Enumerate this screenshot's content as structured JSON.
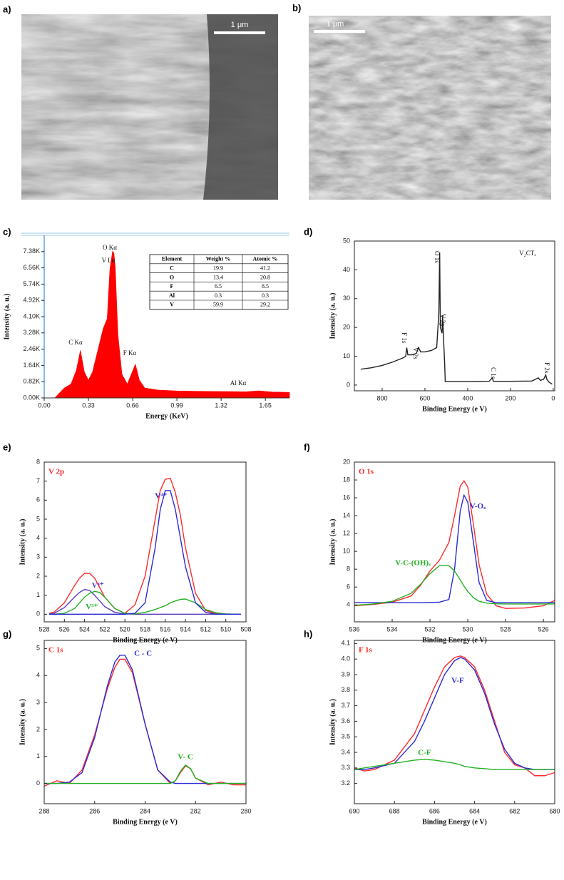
{
  "images": [
    {
      "label": "a)",
      "scale_bar": "1 μm"
    },
    {
      "label": "b)",
      "scale_bar": "1 μm"
    }
  ],
  "chart_data": [
    {
      "type": "area",
      "label": "c)",
      "xlabel": "Energy (KeV)",
      "ylabel": "Intensity (a. u.)",
      "xlim": [
        0,
        1.83
      ],
      "ylim": [
        0,
        8200
      ],
      "xticks": [
        {
          "value": 0,
          "label": "0.00"
        },
        0.33,
        0.66,
        0.99,
        1.32,
        1.65
      ],
      "yticks": [
        {
          "value": 0,
          "label": "0.00K"
        },
        {
          "value": 820,
          "label": "0.82K"
        },
        {
          "value": 1640,
          "label": "1.64K"
        },
        {
          "value": 2460,
          "label": "2.46K"
        },
        {
          "value": 3280,
          "label": "3.28K"
        },
        {
          "value": 4100,
          "label": "4.10K"
        },
        {
          "value": 4920,
          "label": "4.92K"
        },
        {
          "value": 5740,
          "label": "5.74K"
        },
        {
          "value": 6560,
          "label": "6.56K"
        },
        {
          "value": 7380,
          "label": "7.38K"
        }
      ],
      "x": [
        0,
        0.08,
        0.1,
        0.15,
        0.2,
        0.24,
        0.27,
        0.3,
        0.33,
        0.36,
        0.4,
        0.44,
        0.47,
        0.49,
        0.51,
        0.52,
        0.53,
        0.55,
        0.58,
        0.62,
        0.65,
        0.68,
        0.71,
        0.75,
        0.85,
        1.0,
        1.2,
        1.4,
        1.5,
        1.6,
        1.7,
        1.83
      ],
      "series": [
        {
          "color": "#ff0000",
          "values": [
            0,
            0,
            150,
            500,
            700,
            1400,
            2400,
            1300,
            900,
            1300,
            2400,
            3500,
            4000,
            6500,
            7400,
            7300,
            6600,
            3200,
            1200,
            700,
            1200,
            1700,
            900,
            500,
            400,
            350,
            330,
            320,
            310,
            360,
            300,
            280
          ]
        }
      ],
      "annotations": [
        "C Kα",
        "O Kα",
        "V Lα",
        "F Kα",
        "Al Kα"
      ],
      "table": {
        "header": [
          "Element",
          "Weight %",
          "Atomic %"
        ],
        "rows": [
          [
            "C",
            19.9,
            41.2
          ],
          [
            "O",
            13.4,
            20.8
          ],
          [
            "F",
            6.5,
            8.5
          ],
          [
            "Al",
            0.3,
            0.3
          ],
          [
            "V",
            59.9,
            29.2
          ]
        ]
      }
    },
    {
      "type": "line",
      "label": "d)",
      "xlabel": "Binding Energy (e V)",
      "ylabel": "Intensity (a. u.)",
      "xlim": [
        930,
        -7
      ],
      "ylim": [
        -2,
        50
      ],
      "xticks": [
        800,
        600,
        400,
        200,
        0
      ],
      "yticks": [
        0,
        10,
        20,
        30,
        40,
        50
      ],
      "x": [
        900,
        850,
        800,
        750,
        700,
        690,
        685,
        680,
        660,
        640,
        630,
        620,
        600,
        570,
        545,
        535,
        531,
        528,
        520,
        517,
        513,
        508,
        505,
        400,
        300,
        285,
        280,
        200,
        100,
        70,
        60,
        45,
        35,
        30,
        20,
        5
      ],
      "series": [
        {
          "color": "#222222",
          "values": [
            5.5,
            6,
            6.8,
            8,
            9.5,
            10,
            13,
            10.5,
            10.5,
            11,
            13,
            11.5,
            11.5,
            12,
            13,
            25,
            46,
            20,
            18,
            24,
            16,
            8,
            1.2,
            1.2,
            1.3,
            2.5,
            1.3,
            1.3,
            1.4,
            2.5,
            1.6,
            2,
            3.5,
            2,
            1,
            0.3
          ]
        }
      ],
      "annotations": [
        "O 1s",
        "V 2p",
        "F 1s",
        "V 2s",
        "C 1s",
        "F 2s",
        "V₂CTₓ"
      ]
    },
    {
      "type": "line",
      "label": "e)",
      "title": "V 2p",
      "xlabel": "Binding Energy (e V)",
      "ylabel": "Intensity (a. u.)",
      "xlim": [
        528,
        508
      ],
      "ylim": [
        -0.4,
        8
      ],
      "xticks": [
        528,
        526,
        524,
        522,
        520,
        518,
        516,
        514,
        512,
        510,
        508
      ],
      "yticks": [
        0,
        1,
        2,
        3,
        4,
        5,
        6,
        7,
        8
      ],
      "x": [
        527.5,
        527,
        526,
        525,
        524.5,
        524,
        523.5,
        523,
        522.5,
        522,
        521,
        520,
        519,
        518,
        517,
        516.5,
        516,
        515.5,
        515,
        514.5,
        514,
        513,
        512,
        511,
        510,
        509,
        508.5
      ],
      "series": [
        {
          "color": "#ff2a2a",
          "values": [
            0.05,
            0.12,
            0.6,
            1.5,
            1.9,
            2.15,
            2.15,
            1.9,
            1.4,
            0.9,
            0.3,
            0.05,
            0.5,
            2.0,
            5.0,
            6.5,
            7.1,
            7.15,
            6.4,
            5.2,
            3.5,
            1.1,
            0.2,
            0.03,
            0,
            0,
            0
          ]
        },
        {
          "name": "V⁴⁺",
          "color": "#5a3fc0",
          "values": [
            0.01,
            0.05,
            0.35,
            0.9,
            1.15,
            1.3,
            1.25,
            1.0,
            0.7,
            0.4,
            0.1,
            0.02,
            0,
            0,
            0,
            0,
            0,
            0,
            0,
            0,
            0,
            0,
            0,
            0,
            0,
            0,
            0
          ]
        },
        {
          "name": "V³⁺",
          "color": "#22b022",
          "values": [
            0,
            0,
            0.05,
            0.3,
            0.6,
            0.9,
            1.1,
            1.2,
            1.15,
            0.9,
            0.3,
            0.05,
            0.02,
            0.1,
            0.25,
            0.35,
            0.45,
            0.6,
            0.7,
            0.78,
            0.8,
            0.6,
            0.25,
            0.08,
            0.02,
            0,
            0
          ]
        },
        {
          "name": "V⁴⁺",
          "color": "#2b2bd6",
          "values": [
            0,
            0,
            0,
            0,
            0,
            0,
            0,
            0,
            0,
            0,
            0,
            0,
            0.05,
            0.6,
            3.5,
            5.5,
            6.5,
            6.5,
            5.5,
            4.0,
            2.5,
            0.6,
            0.1,
            0,
            0,
            0,
            0
          ]
        }
      ]
    },
    {
      "type": "line",
      "label": "f)",
      "title": "O 1s",
      "xlabel": "Binding Energy (e V)",
      "ylabel": "Intensity (a. u.)",
      "xlim": [
        536,
        525.4
      ],
      "ylim": [
        2.1,
        20
      ],
      "xticks": [
        536,
        534,
        532,
        530,
        528,
        526
      ],
      "yticks": [
        4,
        6,
        8,
        10,
        12,
        14,
        16,
        18,
        20
      ],
      "x": [
        536,
        535,
        534,
        533,
        532.5,
        532,
        531.5,
        531,
        530.7,
        530.4,
        530.2,
        530,
        529.7,
        529.4,
        529,
        528.5,
        528,
        527,
        526,
        525.4
      ],
      "series": [
        {
          "color": "#ff2a2a",
          "values": [
            3.9,
            4.05,
            4.3,
            5.0,
            6.2,
            7.8,
            9.0,
            11,
            14,
            17.3,
            17.9,
            17.2,
            13,
            8.5,
            5.2,
            3.9,
            3.6,
            3.65,
            3.9,
            4.5
          ]
        },
        {
          "name": "V-Oₓ",
          "color": "#2b2bd6",
          "values": [
            4.25,
            4.25,
            4.25,
            4.25,
            4.25,
            4.27,
            4.3,
            4.6,
            8,
            14.5,
            16.3,
            15.5,
            11,
            6.5,
            4.5,
            4.25,
            4.25,
            4.25,
            4.25,
            4.25
          ]
        },
        {
          "name": "V-C-(OH)ₓ",
          "color": "#22b022",
          "values": [
            3.95,
            4.1,
            4.4,
            5.3,
            6.3,
            7.5,
            8.4,
            8.4,
            7.8,
            6.8,
            6.1,
            5.5,
            4.8,
            4.4,
            4.2,
            4.12,
            4.1,
            4.1,
            4.1,
            4.1
          ]
        }
      ]
    },
    {
      "type": "line",
      "label": "g)",
      "title": "C 1s",
      "xlabel": "Binding Energy (e V)",
      "ylabel": "Intensity (a. u.)",
      "xlim": [
        288,
        280
      ],
      "ylim": [
        -0.75,
        5.3
      ],
      "xticks": [
        288,
        286,
        284,
        282,
        280
      ],
      "yticks": [
        0,
        1,
        2,
        3,
        4,
        5
      ],
      "x": [
        288,
        287.5,
        287,
        286.5,
        286,
        285.5,
        285.2,
        285,
        284.8,
        284.5,
        284,
        283.5,
        283,
        282.8,
        282.6,
        282.4,
        282.2,
        282,
        281.5,
        281,
        280.5,
        280
      ],
      "series": [
        {
          "color": "#ff2a2a",
          "values": [
            -0.1,
            0.1,
            0.0,
            0.5,
            1.8,
            3.5,
            4.3,
            4.6,
            4.6,
            4.1,
            2.2,
            0.5,
            0.0,
            0.1,
            0.4,
            0.65,
            0.55,
            0.2,
            -0.05,
            0.05,
            -0.05,
            -0.05
          ]
        },
        {
          "name": "C - C",
          "color": "#2b2bd6",
          "values": [
            0,
            0,
            0.05,
            0.4,
            1.7,
            3.6,
            4.5,
            4.75,
            4.75,
            4.2,
            2.2,
            0.5,
            0.05,
            0,
            0,
            0,
            0,
            0,
            0,
            0,
            0,
            0
          ]
        },
        {
          "name": "V- C",
          "color": "#22b022",
          "values": [
            0,
            0,
            0,
            0,
            0,
            0,
            0,
            0,
            0,
            0,
            0,
            0,
            0,
            0.1,
            0.45,
            0.68,
            0.55,
            0.2,
            0,
            0,
            0,
            0
          ]
        }
      ]
    },
    {
      "type": "line",
      "label": "h)",
      "title": "F 1s",
      "xlabel": "Binding Energy (e V)",
      "ylabel": "Intensity (a. u.)",
      "xlim": [
        690,
        680
      ],
      "ylim": [
        3.07,
        4.12
      ],
      "xticks": [
        690,
        688,
        686,
        684,
        682,
        680
      ],
      "yticks": [
        3.2,
        3.3,
        3.4,
        3.5,
        3.6,
        3.7,
        3.8,
        3.9,
        {
          "value": 4,
          "label": "4.0"
        },
        4.1
      ],
      "x": [
        690,
        689.5,
        689,
        688,
        687,
        686.5,
        686,
        685.5,
        685,
        684.7,
        684.5,
        684,
        683.5,
        683,
        682.5,
        682,
        681.5,
        681,
        680.5,
        680
      ],
      "series": [
        {
          "color": "#ff2a2a",
          "values": [
            3.3,
            3.28,
            3.29,
            3.35,
            3.52,
            3.67,
            3.82,
            3.95,
            4.01,
            4.02,
            4.01,
            3.95,
            3.8,
            3.6,
            3.4,
            3.32,
            3.3,
            3.25,
            3.25,
            3.27
          ]
        },
        {
          "name": "V-F",
          "color": "#2b2bd6",
          "values": [
            3.29,
            3.29,
            3.3,
            3.33,
            3.47,
            3.6,
            3.75,
            3.9,
            3.99,
            4.01,
            4.0,
            3.93,
            3.78,
            3.58,
            3.42,
            3.33,
            3.3,
            3.29,
            3.29,
            3.29
          ]
        },
        {
          "name": "C-F",
          "color": "#22b022",
          "values": [
            3.29,
            3.3,
            3.31,
            3.33,
            3.35,
            3.355,
            3.35,
            3.34,
            3.33,
            3.32,
            3.31,
            3.3,
            3.295,
            3.29,
            3.29,
            3.29,
            3.29,
            3.29,
            3.29,
            3.29
          ]
        }
      ]
    }
  ]
}
